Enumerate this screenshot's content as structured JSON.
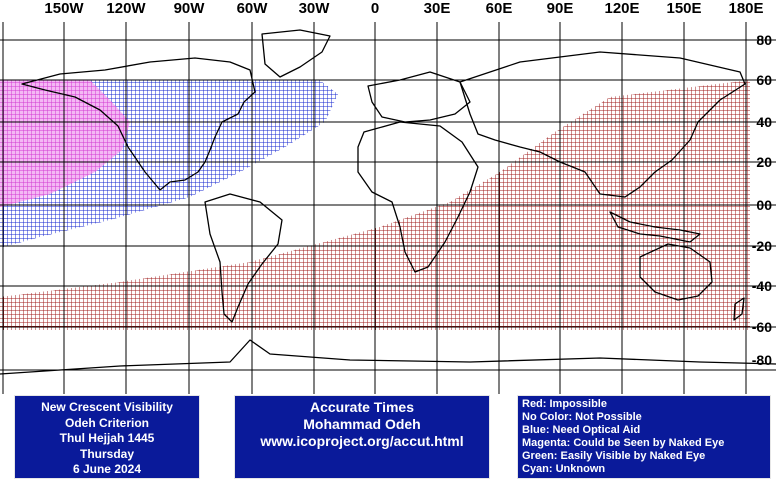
{
  "axes": {
    "longitude_labels": [
      "150W",
      "120W",
      "90W",
      "60W",
      "30W",
      "0",
      "30E",
      "60E",
      "90E",
      "120E",
      "150E",
      "180E"
    ],
    "latitude_labels": [
      "80",
      "60",
      "40",
      "20",
      "00",
      "-20",
      "-40",
      "-60",
      "-80"
    ]
  },
  "colors": {
    "impossible": "#a01e1e",
    "naked_eye": "#d23ad2",
    "optical_aid": "#1a2ad0",
    "coast": "#000000",
    "panel_bg": "#0a1a9a"
  },
  "visibility_zones": [
    {
      "category": "Impossible",
      "color": "#a01e1e"
    },
    {
      "category": "Need Optical Aid",
      "color": "#1a2ad0"
    },
    {
      "category": "Could be Seen by Naked Eye",
      "color": "#d23ad2"
    }
  ],
  "info": {
    "line1": "New Crescent Visibility",
    "line2": "Odeh Criterion",
    "line3": "Thul Hejjah 1445",
    "line4": "Thursday",
    "line5": "6 June 2024"
  },
  "credit": {
    "line1": "Accurate Times",
    "line2": "Mohammad Odeh",
    "line3": "www.icoproject.org/accut.html"
  },
  "legend": [
    "Red: Impossible",
    "No Color: Not Possible",
    "Blue: Need Optical Aid",
    "Magenta: Could be Seen by Naked Eye",
    "Green: Easily Visible by Naked Eye",
    "Cyan: Unknown"
  ]
}
